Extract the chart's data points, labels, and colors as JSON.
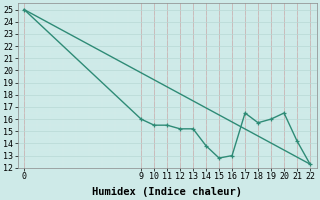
{
  "line1_x": [
    0,
    9,
    10,
    11,
    12,
    13,
    14,
    15,
    16,
    17,
    18,
    19,
    20,
    21,
    22
  ],
  "line1_y": [
    25,
    16,
    15.5,
    15.5,
    15.2,
    15.2,
    13.8,
    12.8,
    13.0,
    16.5,
    15.7,
    16.0,
    16.5,
    14.2,
    12.3
  ],
  "line2_x": [
    0,
    22
  ],
  "line2_y": [
    25,
    12.3
  ],
  "line_color": "#2e8b76",
  "marker_color": "#2e8b76",
  "bg_color": "#ceeae8",
  "grid_major_color": "#b8d8d4",
  "grid_minor_color": "#d4ebe8",
  "xlabel": "Humidex (Indice chaleur)",
  "xlim": [
    -0.5,
    22.5
  ],
  "ylim": [
    12,
    25.5
  ],
  "yticks": [
    12,
    13,
    14,
    15,
    16,
    17,
    18,
    19,
    20,
    21,
    22,
    23,
    24,
    25
  ],
  "xticks": [
    0,
    9,
    10,
    11,
    12,
    13,
    14,
    15,
    16,
    17,
    18,
    19,
    20,
    21,
    22
  ],
  "xlabel_fontsize": 7.5,
  "tick_fontsize": 6.0,
  "line_width": 1.0,
  "marker_size": 3.5
}
